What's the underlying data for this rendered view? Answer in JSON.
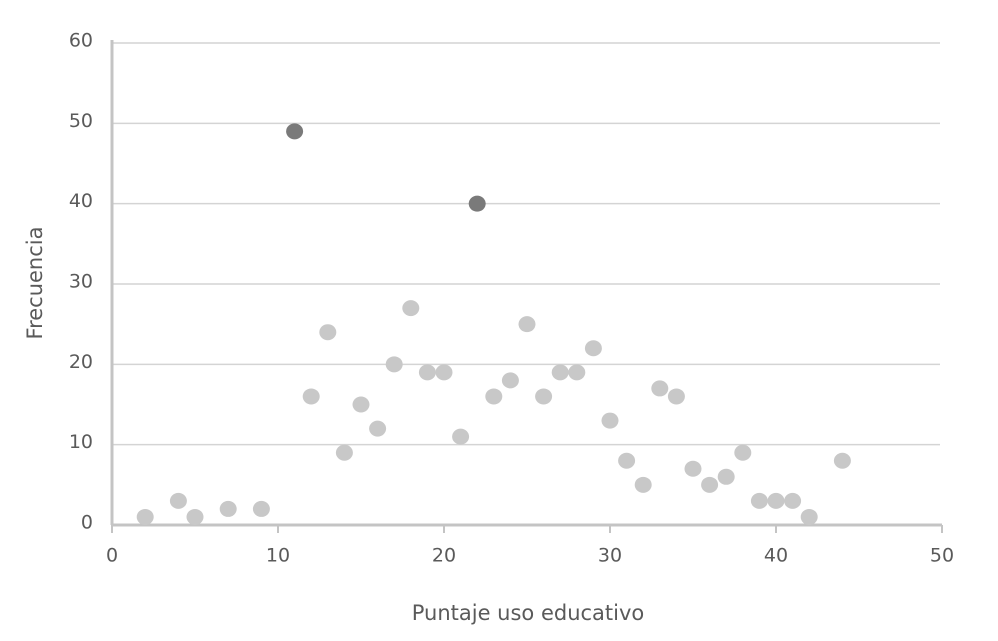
{
  "chart_data": {
    "type": "scatter",
    "x_label": "Puntaje uso educativo",
    "y_label": "Frecuencia",
    "xlim": [
      0,
      50
    ],
    "ylim": [
      0,
      60
    ],
    "xticks": [
      0,
      10,
      20,
      30,
      40,
      50
    ],
    "yticks": [
      0,
      10,
      20,
      30,
      40,
      50,
      60
    ],
    "grid": true,
    "series": [
      {
        "color": "#c8c8c8",
        "x": [
          2,
          4,
          5,
          7,
          9,
          12,
          13,
          14,
          15,
          16,
          17,
          18,
          19,
          20,
          21,
          23,
          24,
          25,
          26,
          27,
          28,
          29,
          30,
          31,
          32,
          33,
          34,
          35,
          36,
          37,
          38,
          39,
          40,
          41,
          42,
          44
        ],
        "values": [
          1,
          3,
          1,
          2,
          2,
          16,
          24,
          9,
          15,
          12,
          20,
          27,
          19,
          19,
          11,
          16,
          18,
          25,
          16,
          19,
          19,
          22,
          13,
          8,
          5,
          17,
          16,
          7,
          5,
          6,
          9,
          3,
          3,
          3,
          1,
          8
        ]
      },
      {
        "color": "#7a7a7a",
        "x": [
          11,
          22
        ],
        "values": [
          49,
          40
        ]
      }
    ]
  }
}
